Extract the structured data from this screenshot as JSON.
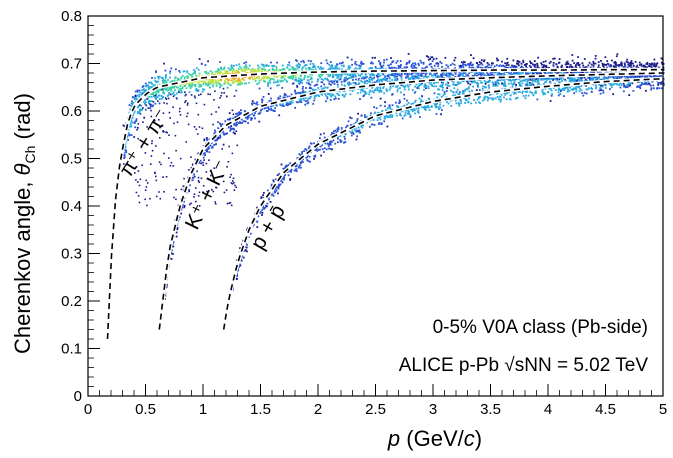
{
  "chart_data": {
    "type": "scatter",
    "subtype": "2d-density-histogram",
    "xlabel": "p (GeV/c)",
    "ylabel": "Cherenkov angle, θCh (rad)",
    "xlim": [
      0,
      5
    ],
    "ylim": [
      0,
      0.8
    ],
    "x_ticks": [
      "0",
      "0.5",
      "1",
      "1.5",
      "2",
      "2.5",
      "3",
      "3.5",
      "4",
      "4.5",
      "5"
    ],
    "y_ticks": [
      "0",
      "0.1",
      "0.2",
      "0.3",
      "0.4",
      "0.5",
      "0.6",
      "0.7",
      "0.8"
    ],
    "grid": false,
    "annotations": [
      "0-5% V0A class (Pb-side)",
      "ALICE p-Pb √sNN = 5.02 TeV"
    ],
    "band_labels": [
      "π⁺ + π⁻",
      "K⁺ + K⁻",
      "p + p̄"
    ],
    "series": [
      {
        "name": "π⁺ + π⁻",
        "style": "dashed-curve",
        "x": [
          0.17,
          0.2,
          0.25,
          0.3,
          0.35,
          0.4,
          0.5,
          0.6,
          0.8,
          1.0,
          1.5,
          2.0,
          2.5,
          3.0,
          3.5,
          4.0,
          4.5,
          5.0
        ],
        "y": [
          0.12,
          0.28,
          0.45,
          0.52,
          0.58,
          0.61,
          0.635,
          0.65,
          0.66,
          0.67,
          0.678,
          0.682,
          0.684,
          0.685,
          0.686,
          0.686,
          0.687,
          0.687
        ]
      },
      {
        "name": "K⁺ + K⁻",
        "style": "dashed-curve",
        "x": [
          0.62,
          0.65,
          0.7,
          0.8,
          0.9,
          1.0,
          1.2,
          1.5,
          2.0,
          2.5,
          3.0,
          3.5,
          4.0,
          4.5,
          5.0
        ],
        "y": [
          0.14,
          0.2,
          0.3,
          0.4,
          0.47,
          0.52,
          0.57,
          0.61,
          0.64,
          0.655,
          0.665,
          0.67,
          0.674,
          0.677,
          0.68
        ]
      },
      {
        "name": "p + p̄",
        "style": "dashed-curve",
        "x": [
          1.18,
          1.22,
          1.3,
          1.4,
          1.5,
          1.7,
          2.0,
          2.5,
          3.0,
          3.5,
          4.0,
          4.5,
          5.0
        ],
        "y": [
          0.14,
          0.2,
          0.28,
          0.35,
          0.4,
          0.47,
          0.53,
          0.59,
          0.62,
          0.64,
          0.652,
          0.662,
          0.668
        ]
      }
    ],
    "colormap": [
      "#1a1a8c",
      "#2a52d6",
      "#27a9e1",
      "#3ad1a6",
      "#b9e23c",
      "#f5a623",
      "#d7191c"
    ]
  }
}
